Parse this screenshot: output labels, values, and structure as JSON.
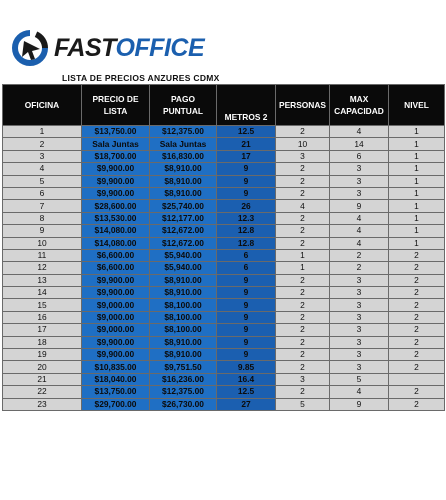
{
  "brand": {
    "fast": "FAST",
    "office": "OFFICE",
    "logo_icon": "circular-arrow-logo-icon"
  },
  "list_title": "LISTA DE PRECIOS ANZURES CDMX",
  "colors": {
    "price_blue": "#1f6fc4",
    "header_black": "#0a0a0a",
    "row_grey": "#d4d4d4",
    "brand_blue": "#1b5fae"
  },
  "headers": {
    "oficina": "OFICINA",
    "precio": "PRECIO DE LISTA",
    "pago": "PAGO PUNTUAL",
    "metros": "METROS 2",
    "personas": "PERSONAS",
    "max": "MAX CAPACIDAD",
    "nivel": "NIVEL"
  },
  "rows": [
    {
      "oficina": "1",
      "precio": "$13,750.00",
      "pago": "$12,375.00",
      "metros": "12.5",
      "personas": "2",
      "max": "4",
      "nivel": "1"
    },
    {
      "oficina": "2",
      "precio": "Sala Juntas",
      "pago": "Sala Juntas",
      "metros": "21",
      "personas": "10",
      "max": "14",
      "nivel": "1"
    },
    {
      "oficina": "3",
      "precio": "$18,700.00",
      "pago": "$16,830.00",
      "metros": "17",
      "personas": "3",
      "max": "6",
      "nivel": "1"
    },
    {
      "oficina": "4",
      "precio": "$9,900.00",
      "pago": "$8,910.00",
      "metros": "9",
      "personas": "2",
      "max": "3",
      "nivel": "1"
    },
    {
      "oficina": "5",
      "precio": "$9,900.00",
      "pago": "$8,910.00",
      "metros": "9",
      "personas": "2",
      "max": "3",
      "nivel": "1"
    },
    {
      "oficina": "6",
      "precio": "$9,900.00",
      "pago": "$8,910.00",
      "metros": "9",
      "personas": "2",
      "max": "3",
      "nivel": "1"
    },
    {
      "oficina": "7",
      "precio": "$28,600.00",
      "pago": "$25,740.00",
      "metros": "26",
      "personas": "4",
      "max": "9",
      "nivel": "1"
    },
    {
      "oficina": "8",
      "precio": "$13,530.00",
      "pago": "$12,177.00",
      "metros": "12.3",
      "personas": "2",
      "max": "4",
      "nivel": "1"
    },
    {
      "oficina": "9",
      "precio": "$14,080.00",
      "pago": "$12,672.00",
      "metros": "12.8",
      "personas": "2",
      "max": "4",
      "nivel": "1"
    },
    {
      "oficina": "10",
      "precio": "$14,080.00",
      "pago": "$12,672.00",
      "metros": "12.8",
      "personas": "2",
      "max": "4",
      "nivel": "1"
    },
    {
      "oficina": "11",
      "precio": "$6,600.00",
      "pago": "$5,940.00",
      "metros": "6",
      "personas": "1",
      "max": "2",
      "nivel": "2"
    },
    {
      "oficina": "12",
      "precio": "$6,600.00",
      "pago": "$5,940.00",
      "metros": "6",
      "personas": "1",
      "max": "2",
      "nivel": "2"
    },
    {
      "oficina": "13",
      "precio": "$9,900.00",
      "pago": "$8,910.00",
      "metros": "9",
      "personas": "2",
      "max": "3",
      "nivel": "2"
    },
    {
      "oficina": "14",
      "precio": "$9,900.00",
      "pago": "$8,910.00",
      "metros": "9",
      "personas": "2",
      "max": "3",
      "nivel": "2"
    },
    {
      "oficina": "15",
      "precio": "$9,000.00",
      "pago": "$8,100.00",
      "metros": "9",
      "personas": "2",
      "max": "3",
      "nivel": "2"
    },
    {
      "oficina": "16",
      "precio": "$9,000.00",
      "pago": "$8,100.00",
      "metros": "9",
      "personas": "2",
      "max": "3",
      "nivel": "2"
    },
    {
      "oficina": "17",
      "precio": "$9,000.00",
      "pago": "$8,100.00",
      "metros": "9",
      "personas": "2",
      "max": "3",
      "nivel": "2"
    },
    {
      "oficina": "18",
      "precio": "$9,900.00",
      "pago": "$8,910.00",
      "metros": "9",
      "personas": "2",
      "max": "3",
      "nivel": "2"
    },
    {
      "oficina": "19",
      "precio": "$9,900.00",
      "pago": "$8,910.00",
      "metros": "9",
      "personas": "2",
      "max": "3",
      "nivel": "2"
    },
    {
      "oficina": "20",
      "precio": "$10,835.00",
      "pago": "$9,751.50",
      "metros": "9.85",
      "personas": "2",
      "max": "3",
      "nivel": "2"
    },
    {
      "oficina": "21",
      "precio": "$18,040.00",
      "pago": "$16,236.00",
      "metros": "16.4",
      "personas": "3",
      "max": "5",
      "nivel": ""
    },
    {
      "oficina": "22",
      "precio": "$13,750.00",
      "pago": "$12,375.00",
      "metros": "12.5",
      "personas": "2",
      "max": "4",
      "nivel": "2"
    },
    {
      "oficina": "23",
      "precio": "$29,700.00",
      "pago": "$26,730.00",
      "metros": "27",
      "personas": "5",
      "max": "9",
      "nivel": "2"
    }
  ]
}
